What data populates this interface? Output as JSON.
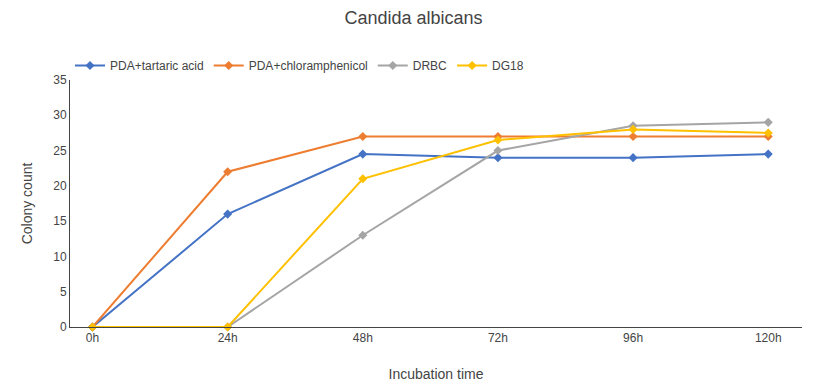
{
  "chart_data": {
    "type": "line",
    "title": "Candida albicans",
    "xlabel": "Incubation time",
    "ylabel": "Colony count",
    "x": [
      0,
      24,
      48,
      72,
      96,
      120
    ],
    "xlim": [
      -4,
      126
    ],
    "xticks": [
      {
        "value": 0,
        "label": "0h"
      },
      {
        "value": 24,
        "label": "24h"
      },
      {
        "value": 48,
        "label": "48h"
      },
      {
        "value": 72,
        "label": "72h"
      },
      {
        "value": 96,
        "label": "96h"
      },
      {
        "value": 120,
        "label": "120h"
      }
    ],
    "ylim": [
      0,
      35
    ],
    "yticks": [
      0,
      5,
      10,
      15,
      20,
      25,
      30,
      35
    ],
    "grid": false,
    "legend": "top",
    "series": [
      {
        "name": "PDA+tartaric acid",
        "color": "#4472C4",
        "marker": "diamond",
        "values": [
          0,
          16,
          24.5,
          24,
          24,
          24.5
        ]
      },
      {
        "name": "PDA+chloramphenicol",
        "color": "#ED7D31",
        "marker": "diamond",
        "values": [
          0,
          22,
          27,
          27,
          27,
          27
        ]
      },
      {
        "name": "DRBC",
        "color": "#A5A5A5",
        "marker": "diamond",
        "values": [
          0,
          0,
          13,
          25,
          28.5,
          29
        ]
      },
      {
        "name": "DG18",
        "color": "#FFC000",
        "marker": "diamond",
        "values": [
          0,
          0,
          21,
          26.5,
          28,
          27.5
        ]
      }
    ]
  }
}
